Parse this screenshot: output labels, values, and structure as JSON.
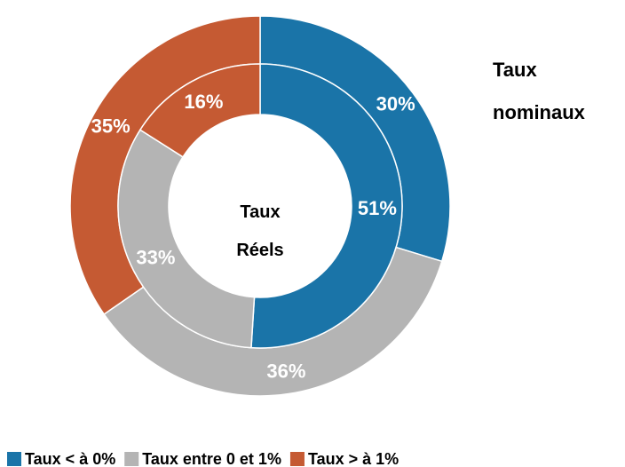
{
  "chart_data": {
    "type": "donut",
    "categories": [
      "Taux < à 0%",
      "Taux entre 0 et 1%",
      "Taux > à 1%"
    ],
    "colors": [
      "#1a74a8",
      "#b4b4b4",
      "#c55a33"
    ],
    "series": [
      {
        "name": "Taux nominaux",
        "values": [
          30,
          36,
          35
        ],
        "value_labels": [
          "30%",
          "36%",
          "35%"
        ]
      },
      {
        "name": "Taux Réels",
        "values": [
          51,
          33,
          16
        ],
        "value_labels": [
          "51%",
          "33%",
          "16%"
        ]
      }
    ]
  }
}
